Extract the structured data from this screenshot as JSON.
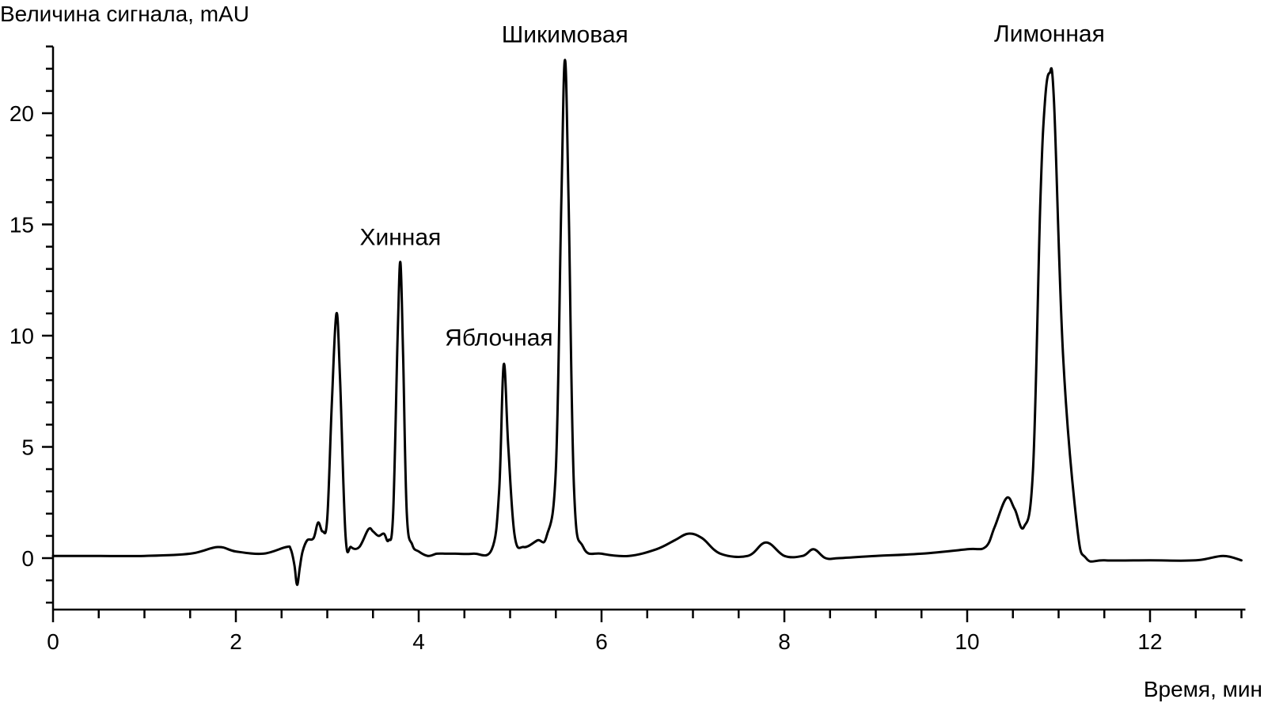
{
  "chart_data": {
    "type": "line",
    "title": "",
    "ylabel": "Величина сигнала, mAU",
    "xlabel": "Время, мин",
    "xlim": [
      0,
      13
    ],
    "ylim": [
      -2.2,
      23
    ],
    "x_major_ticks": [
      0,
      2,
      4,
      6,
      8,
      10,
      12
    ],
    "x_tick_labels": [
      "0",
      "2",
      "4",
      "6",
      "8",
      "10",
      "12"
    ],
    "x_minor_step": 0.5,
    "y_major_ticks": [
      0,
      5,
      10,
      15,
      20
    ],
    "y_tick_labels": [
      "0",
      "5",
      "10",
      "15",
      "20"
    ],
    "y_minor_step": 1,
    "grid": false,
    "series": [
      {
        "x": [
          0,
          0.5,
          1.0,
          1.5,
          1.8,
          2.0,
          2.3,
          2.55,
          2.6,
          2.64,
          2.67,
          2.7,
          2.73,
          2.78,
          2.85,
          2.9,
          2.95,
          3.0,
          3.05,
          3.1,
          3.14,
          3.2,
          3.26,
          3.35,
          3.45,
          3.5,
          3.56,
          3.62,
          3.67,
          3.72,
          3.77,
          3.8,
          3.83,
          3.87,
          3.93,
          4.0,
          4.1,
          4.2,
          4.3,
          4.4,
          4.6,
          4.8,
          4.88,
          4.93,
          4.98,
          5.05,
          5.15,
          5.3,
          5.4,
          5.5,
          5.56,
          5.6,
          5.64,
          5.7,
          5.8,
          6.0,
          6.3,
          6.6,
          6.8,
          6.95,
          7.1,
          7.3,
          7.6,
          7.8,
          8.0,
          8.2,
          8.32,
          8.45,
          8.6,
          9.0,
          9.5,
          10.0,
          10.2,
          10.3,
          10.43,
          10.52,
          10.62,
          10.72,
          10.8,
          10.85,
          10.9,
          10.95,
          11.05,
          11.2,
          11.3,
          11.5,
          12.0,
          12.5,
          12.8,
          13.0
        ],
        "y": [
          0.1,
          0.1,
          0.1,
          0.2,
          0.5,
          0.3,
          0.2,
          0.5,
          0.4,
          -0.3,
          -1.2,
          -0.4,
          0.3,
          0.8,
          0.9,
          1.6,
          1.2,
          1.8,
          7.0,
          11.0,
          8.0,
          1.0,
          0.5,
          0.5,
          1.3,
          1.2,
          1.0,
          1.1,
          0.8,
          2.0,
          10.0,
          13.3,
          9.0,
          2.0,
          0.6,
          0.3,
          0.1,
          0.2,
          0.2,
          0.2,
          0.2,
          0.4,
          3.0,
          8.7,
          5.0,
          1.0,
          0.5,
          0.8,
          1.0,
          4.0,
          16.0,
          22.4,
          16.0,
          3.0,
          0.5,
          0.2,
          0.1,
          0.4,
          0.8,
          1.1,
          0.9,
          0.2,
          0.1,
          0.7,
          0.1,
          0.1,
          0.4,
          0.0,
          0.0,
          0.1,
          0.2,
          0.4,
          0.5,
          1.4,
          2.7,
          2.2,
          1.4,
          4.0,
          16.0,
          20.5,
          21.8,
          20.5,
          9.0,
          1.5,
          0.0,
          -0.1,
          -0.1,
          -0.1,
          0.1,
          -0.1
        ]
      }
    ],
    "annotations": [
      {
        "text": "Хинная",
        "x": 3.8,
        "y": 13.3
      },
      {
        "text": "Яблочная",
        "x": 4.93,
        "y": 8.7
      },
      {
        "text": "Шикимовая",
        "x": 5.6,
        "y": 22.4
      },
      {
        "text": "Лимонная",
        "x": 10.9,
        "y": 21.8
      }
    ]
  }
}
